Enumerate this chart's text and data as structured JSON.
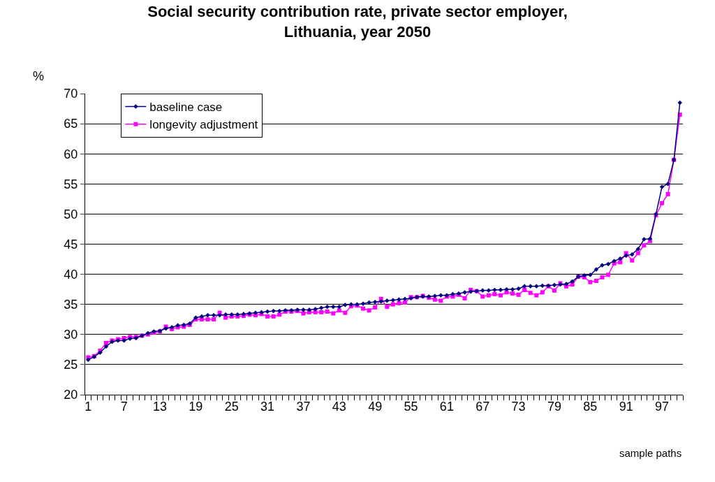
{
  "chart_data": {
    "type": "line",
    "title": "Social security contribution rate, private sector employer,\nLithuania, year 2050",
    "ylabel": "%",
    "xlabel": "sample paths",
    "categories": [
      "1",
      null,
      null,
      null,
      null,
      null,
      "7",
      null,
      null,
      null,
      null,
      null,
      "13",
      null,
      null,
      null,
      null,
      null,
      "19",
      null,
      null,
      null,
      null,
      null,
      "25",
      null,
      null,
      null,
      null,
      null,
      "31",
      null,
      null,
      null,
      null,
      null,
      "37",
      null,
      null,
      null,
      null,
      null,
      "43",
      null,
      null,
      null,
      null,
      null,
      "49",
      null,
      null,
      null,
      null,
      null,
      "55",
      null,
      null,
      null,
      null,
      null,
      "61",
      null,
      null,
      null,
      null,
      null,
      "67",
      null,
      null,
      null,
      null,
      null,
      "73",
      null,
      null,
      null,
      null,
      null,
      "79",
      null,
      null,
      null,
      null,
      null,
      "85",
      null,
      null,
      null,
      null,
      null,
      "91",
      null,
      null,
      null,
      null,
      null,
      "97",
      null,
      null,
      null
    ],
    "series": [
      {
        "name": "baseline case",
        "color": "#000080",
        "marker": "diamond",
        "values": [
          25.8,
          26.3,
          27.0,
          28.0,
          28.8,
          29.0,
          29.0,
          29.3,
          29.4,
          29.8,
          30.2,
          30.5,
          30.6,
          31.0,
          31.2,
          31.5,
          31.6,
          31.8,
          32.8,
          33.0,
          33.2,
          33.2,
          33.2,
          33.3,
          33.3,
          33.3,
          33.4,
          33.5,
          33.6,
          33.7,
          33.8,
          33.9,
          33.9,
          34.0,
          34.0,
          34.1,
          34.1,
          34.1,
          34.2,
          34.4,
          34.6,
          34.6,
          34.6,
          34.9,
          35.0,
          35.0,
          35.1,
          35.3,
          35.4,
          35.5,
          35.6,
          35.7,
          35.8,
          35.9,
          36.0,
          36.2,
          36.3,
          36.3,
          36.4,
          36.5,
          36.5,
          36.7,
          36.8,
          37.0,
          37.1,
          37.2,
          37.3,
          37.3,
          37.4,
          37.4,
          37.5,
          37.5,
          37.6,
          38.0,
          38.0,
          38.0,
          38.1,
          38.1,
          38.2,
          38.3,
          38.4,
          38.8,
          39.6,
          39.8,
          39.9,
          40.8,
          41.5,
          41.7,
          42.2,
          42.6,
          43.1,
          43.3,
          44.2,
          45.8,
          45.9,
          50.0,
          54.5,
          55.0,
          59.0,
          68.5
        ]
      },
      {
        "name": "longevity adjustment",
        "color": "#ff00ff",
        "marker": "square",
        "values": [
          26.2,
          26.4,
          27.3,
          28.6,
          29.0,
          29.2,
          29.4,
          29.6,
          29.6,
          29.8,
          30.0,
          30.3,
          30.5,
          31.3,
          30.9,
          31.2,
          31.3,
          31.6,
          32.5,
          32.5,
          32.5,
          32.5,
          33.6,
          32.8,
          33.0,
          33.0,
          33.1,
          33.3,
          33.2,
          33.4,
          33.0,
          33.0,
          33.3,
          33.8,
          33.8,
          33.9,
          33.5,
          33.7,
          33.7,
          33.7,
          33.8,
          33.5,
          34.0,
          33.6,
          34.7,
          34.8,
          34.3,
          34.0,
          34.5,
          35.9,
          34.6,
          35.0,
          35.2,
          35.3,
          36.2,
          36.2,
          36.4,
          36.1,
          35.8,
          35.6,
          36.3,
          36.3,
          36.6,
          36.0,
          37.4,
          37.2,
          36.3,
          36.5,
          36.7,
          36.5,
          37.0,
          36.8,
          36.6,
          37.4,
          36.9,
          36.5,
          37.0,
          38.0,
          37.3,
          38.5,
          38.0,
          38.3,
          39.6,
          39.5,
          38.7,
          38.9,
          39.5,
          39.9,
          41.8,
          42.0,
          43.5,
          42.3,
          43.5,
          44.8,
          45.5,
          49.8,
          51.8,
          53.3,
          59.0,
          66.5
        ]
      }
    ],
    "ylim": [
      20,
      70
    ],
    "yticks": [
      20,
      25,
      30,
      35,
      40,
      45,
      50,
      55,
      60,
      65,
      70
    ],
    "grid": "y",
    "legend": "top left",
    "line_style": "solid"
  }
}
